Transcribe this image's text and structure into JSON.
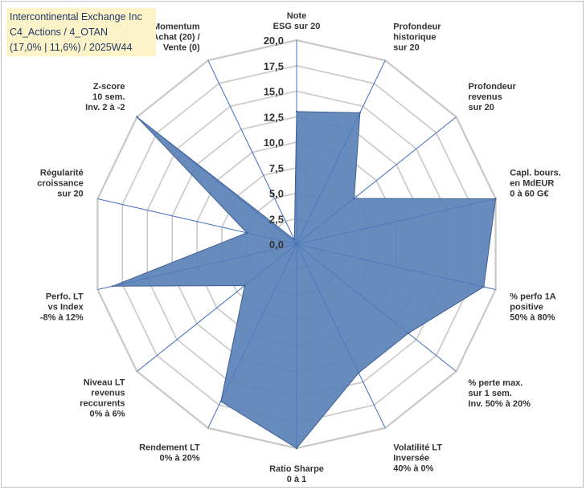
{
  "title_box": {
    "line1": "Intercontinental Exchange Inc",
    "line2": "C4_Actions / 4_OTAN",
    "line3": "(17,0% | 11,6%) / 2025W44"
  },
  "colors": {
    "series_fill": "#5b82b8",
    "series_stroke": "#3f5f8f",
    "grid": "#c8c8c8",
    "spoke": "#4472c4",
    "title_bg": "#fdf3c9",
    "title_text": "#1f3864"
  },
  "chart_data": {
    "type": "radar",
    "rmin": 0,
    "rmax": 20,
    "tick_step": 2.5,
    "tick_labels": [
      "0,0",
      "2,5",
      "5,0",
      "7,5",
      "10,0",
      "12,5",
      "15,0",
      "17,5",
      "20,0"
    ],
    "grid": true,
    "legend": "none",
    "categories": [
      [
        "Note",
        "ESG sur 20"
      ],
      [
        "Profondeur",
        "historique",
        "sur 20"
      ],
      [
        "Profondeur",
        "revenus",
        "sur 20"
      ],
      [
        "Capl. bours.",
        "en MdEUR",
        "0 à 60 G€"
      ],
      [
        "% perfo 1A",
        "positive",
        "50% à 80%"
      ],
      [
        "% perte max.",
        "sur 1 sem.",
        "Inv. 50% à 20%"
      ],
      [
        "Volatilité LT",
        "Inversée",
        "40% à 0%"
      ],
      [
        "Ratio Sharpe",
        "0 à 1"
      ],
      [
        "Rendement LT",
        "0% à 20%"
      ],
      [
        "Niveau LT",
        "revenus",
        "reccurents",
        "0% à 6%"
      ],
      [
        "Perfo. LT",
        "vs Index",
        "-8% à 12%"
      ],
      [
        "Régularité",
        "croissance",
        "sur 20"
      ],
      [
        "Z-score",
        "10 sem.",
        "Inv. 2 à -2"
      ],
      [
        "Momentum",
        "Achat (20) /",
        "Vente (0)"
      ]
    ],
    "series": [
      {
        "values": [
          13,
          14.3,
          7.2,
          20,
          18.8,
          14,
          14,
          20,
          17.1,
          6.5,
          18.5,
          5,
          20,
          0.5
        ]
      }
    ]
  }
}
